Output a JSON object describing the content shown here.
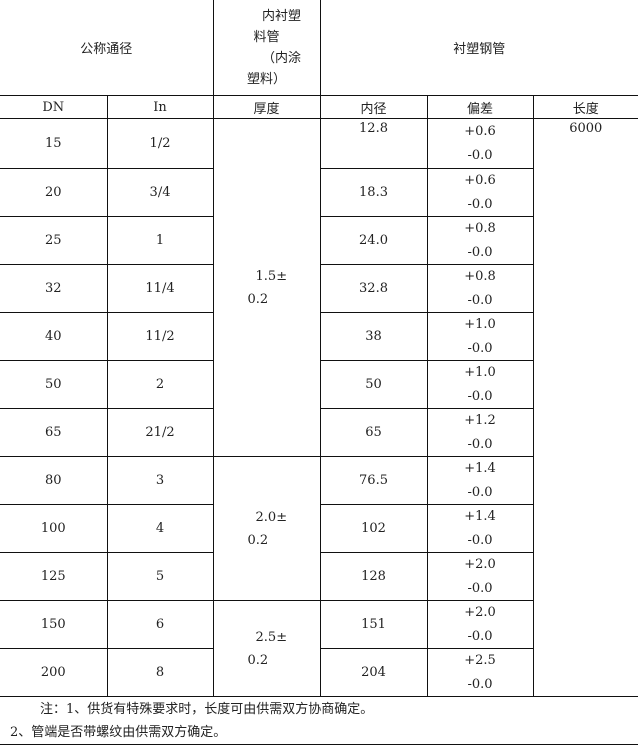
{
  "header": {
    "nominal_diameter": "公称通径",
    "lining_lines": [
      "内衬塑",
      "料管",
      "（内涂",
      "塑料）"
    ],
    "lined_steel_pipe": "衬塑钢管"
  },
  "subheader": [
    "DN",
    "In",
    "厚度",
    "内径",
    "偏差",
    "长度"
  ],
  "length_value": "6000",
  "thickness_groups": [
    {
      "line1": "1.5±",
      "line2": "0.2"
    },
    {
      "line1": "2.0±",
      "line2": "0.2"
    },
    {
      "line1": "2.5±",
      "line2": "0.2"
    }
  ],
  "rows": [
    {
      "dn": "15",
      "in": "1/2",
      "id": "12.8",
      "plus": "+0.6",
      "minus": "-0.0"
    },
    {
      "dn": "20",
      "in": "3/4",
      "id": "18.3",
      "plus": "+0.6",
      "minus": "-0.0"
    },
    {
      "dn": "25",
      "in": "1",
      "id": "24.0",
      "plus": "+0.8",
      "minus": "-0.0"
    },
    {
      "dn": "32",
      "in": "11/4",
      "id": "32.8",
      "plus": "+0.8",
      "minus": "-0.0"
    },
    {
      "dn": "40",
      "in": "11/2",
      "id": "38",
      "plus": "+1.0",
      "minus": "-0.0"
    },
    {
      "dn": "50",
      "in": "2",
      "id": "50",
      "plus": "+1.0",
      "minus": "-0.0"
    },
    {
      "dn": "65",
      "in": "21/2",
      "id": "65",
      "plus": "+1.2",
      "minus": "-0.0"
    },
    {
      "dn": "80",
      "in": "3",
      "id": "76.5",
      "plus": "+1.4",
      "minus": "-0.0"
    },
    {
      "dn": "100",
      "in": "4",
      "id": "102",
      "plus": "+1.4",
      "minus": "-0.0"
    },
    {
      "dn": "125",
      "in": "5",
      "id": "128",
      "plus": "+2.0",
      "minus": "-0.0"
    },
    {
      "dn": "150",
      "in": "6",
      "id": "151",
      "plus": "+2.0",
      "minus": "-0.0"
    },
    {
      "dn": "200",
      "in": "8",
      "id": "204",
      "plus": "+2.5",
      "minus": "-0.0"
    }
  ],
  "notes": [
    "注：1、供货有特殊要求时，长度可由供需双方协商确定。",
    "2、管端是否带螺纹由供需双方确定。"
  ]
}
